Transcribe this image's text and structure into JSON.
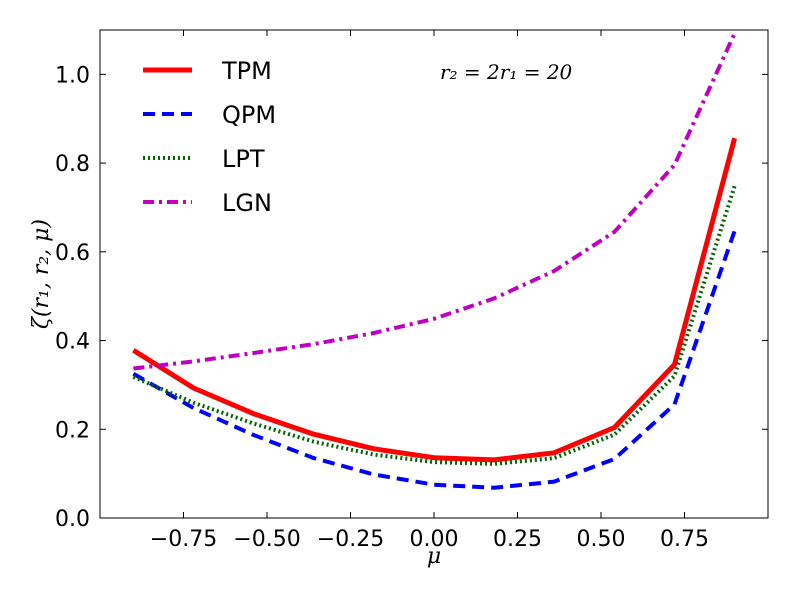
{
  "chart_data": {
    "type": "line",
    "title": "",
    "annotation": "r₂ = 2r₁ = 20",
    "xlabel": "μ",
    "ylabel": "ζ(r₁, r₂, μ)",
    "xlim": [
      -1.0,
      1.0
    ],
    "ylim": [
      0.0,
      1.1
    ],
    "xticks": [
      -0.75,
      -0.5,
      -0.25,
      0.0,
      0.25,
      0.5,
      0.75
    ],
    "xtick_labels": [
      "−0.75",
      "−0.50",
      "−0.25",
      "0.00",
      "0.25",
      "0.50",
      "0.75"
    ],
    "yticks": [
      0.0,
      0.2,
      0.4,
      0.6,
      0.8,
      1.0
    ],
    "ytick_labels": [
      "0.0",
      "0.2",
      "0.4",
      "0.6",
      "0.8",
      "1.0"
    ],
    "legend_position": "top-left",
    "x": [
      -0.9,
      -0.72,
      -0.54,
      -0.36,
      -0.18,
      0.0,
      0.18,
      0.36,
      0.54,
      0.72,
      0.9
    ],
    "series": [
      {
        "name": "TPM",
        "color": "#ff0000",
        "style": "solid",
        "values": [
          0.378,
          0.293,
          0.235,
          0.189,
          0.156,
          0.136,
          0.131,
          0.147,
          0.204,
          0.346,
          0.856
        ]
      },
      {
        "name": "QPM",
        "color": "#0000ff",
        "style": "dashed",
        "values": [
          0.325,
          0.248,
          0.187,
          0.135,
          0.098,
          0.075,
          0.068,
          0.082,
          0.133,
          0.256,
          0.647
        ]
      },
      {
        "name": "LPT",
        "color": "#006400",
        "style": "dotted",
        "values": [
          0.318,
          0.26,
          0.213,
          0.172,
          0.143,
          0.126,
          0.122,
          0.135,
          0.188,
          0.32,
          0.748
        ]
      },
      {
        "name": "LGN",
        "color": "#bf00bf",
        "style": "dashdot",
        "values": [
          0.337,
          0.353,
          0.372,
          0.392,
          0.417,
          0.449,
          0.495,
          0.557,
          0.645,
          0.796,
          1.092
        ]
      }
    ]
  }
}
